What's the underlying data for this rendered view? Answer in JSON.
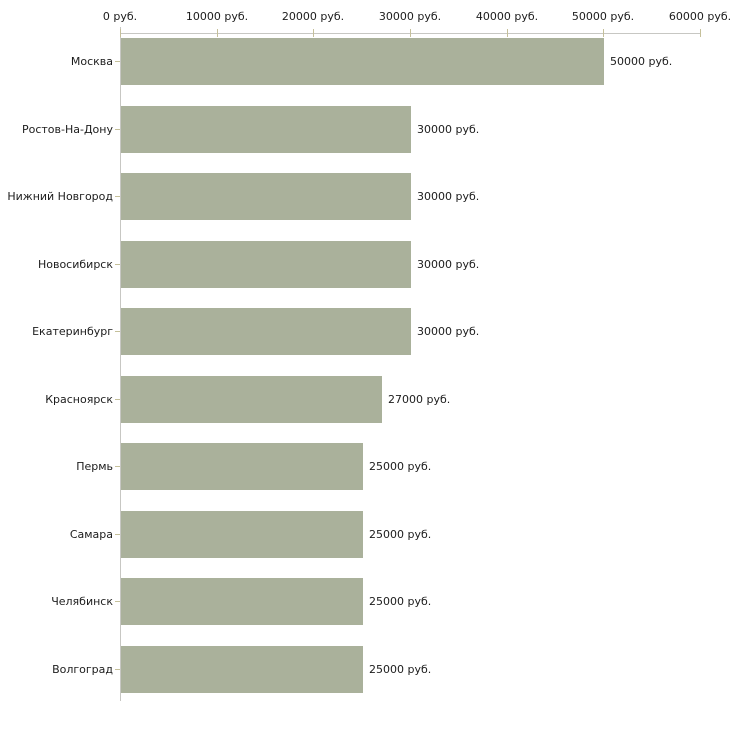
{
  "chart_data": {
    "type": "bar",
    "orientation": "horizontal",
    "title": "",
    "xlabel": "",
    "ylabel": "",
    "unit": "руб.",
    "categories": [
      "Москва",
      "Ростов-На-Дону",
      "Нижний Новгород",
      "Новосибирск",
      "Екатеринбург",
      "Красноярск",
      "Пермь",
      "Самара",
      "Челябинск",
      "Волгоград"
    ],
    "values": [
      50000,
      30000,
      30000,
      30000,
      30000,
      27000,
      25000,
      25000,
      25000,
      25000
    ],
    "value_labels": [
      "50000 руб.",
      "30000 руб.",
      "30000 руб.",
      "30000 руб.",
      "30000 руб.",
      "27000 руб.",
      "25000 руб.",
      "25000 руб.",
      "25000 руб.",
      "25000 руб."
    ],
    "x_ticks": [
      0,
      10000,
      20000,
      30000,
      40000,
      50000,
      60000
    ],
    "x_tick_labels": [
      "0 руб.",
      "10000 руб.",
      "20000 руб.",
      "30000 руб.",
      "40000 руб.",
      "50000 руб.",
      "60000 руб."
    ],
    "xlim": [
      0,
      60000
    ],
    "grid": false,
    "legend": false,
    "axis_position": "top",
    "colors": {
      "bar": "#aab19b",
      "axis_line": "#c7c7c3",
      "tick_mark": "#c5c09a",
      "text": "#1c1c1c",
      "background": "#ffffff"
    }
  }
}
